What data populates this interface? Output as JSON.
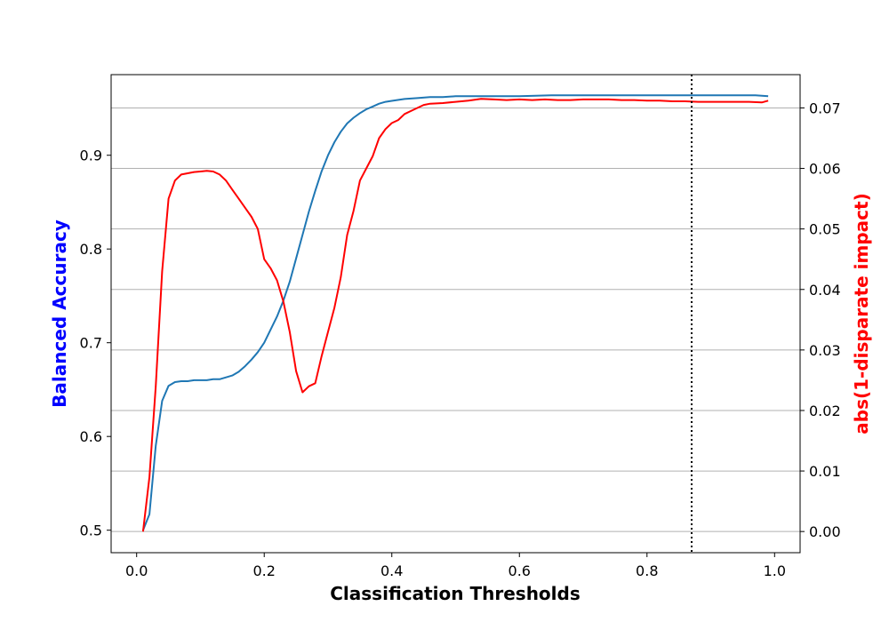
{
  "chart_data": {
    "type": "line",
    "title": "",
    "xlabel": "Classification Thresholds",
    "ylabel_left": "Balanced Accuracy",
    "ylabel_right": "abs(1-disparate impact)",
    "xlim": [
      -0.04,
      1.04
    ],
    "ylim_left": [
      0.476,
      0.986
    ],
    "ylim_right": [
      -0.0035,
      0.0755
    ],
    "x_ticks": [
      0.0,
      0.2,
      0.4,
      0.6,
      0.8,
      1.0
    ],
    "x_tick_labels": [
      "0.0",
      "0.2",
      "0.4",
      "0.6",
      "0.8",
      "1.0"
    ],
    "left_ticks": [
      0.5,
      0.6,
      0.7,
      0.8,
      0.9
    ],
    "left_tick_labels": [
      "0.5",
      "0.6",
      "0.7",
      "0.8",
      "0.9"
    ],
    "right_ticks": [
      0.0,
      0.01,
      0.02,
      0.03,
      0.04,
      0.05,
      0.06,
      0.07
    ],
    "right_tick_labels": [
      "0.00",
      "0.01",
      "0.02",
      "0.03",
      "0.04",
      "0.05",
      "0.06",
      "0.07"
    ],
    "grid": "horizontal (right axis ticks)",
    "vline_x": 0.87,
    "colors": {
      "accuracy": "#1f77b4",
      "disparity": "#ff0000",
      "left_label": "#0000ff",
      "right_label": "#ff0000",
      "grid": "#b0b0b0"
    },
    "series": [
      {
        "axis": "left",
        "x": [
          0.01,
          0.02,
          0.03,
          0.04,
          0.05,
          0.06,
          0.07,
          0.08,
          0.09,
          0.1,
          0.11,
          0.12,
          0.13,
          0.14,
          0.15,
          0.16,
          0.17,
          0.18,
          0.19,
          0.2,
          0.21,
          0.22,
          0.23,
          0.24,
          0.25,
          0.26,
          0.27,
          0.28,
          0.29,
          0.3,
          0.31,
          0.32,
          0.33,
          0.34,
          0.35,
          0.36,
          0.37,
          0.38,
          0.39,
          0.4,
          0.42,
          0.44,
          0.46,
          0.48,
          0.5,
          0.55,
          0.6,
          0.65,
          0.7,
          0.75,
          0.8,
          0.85,
          0.9,
          0.95,
          0.97,
          0.99
        ],
        "values": [
          0.5,
          0.517,
          0.59,
          0.638,
          0.654,
          0.658,
          0.659,
          0.659,
          0.66,
          0.66,
          0.66,
          0.661,
          0.661,
          0.663,
          0.665,
          0.669,
          0.675,
          0.682,
          0.69,
          0.7,
          0.714,
          0.728,
          0.745,
          0.765,
          0.79,
          0.815,
          0.84,
          0.862,
          0.883,
          0.9,
          0.914,
          0.925,
          0.934,
          0.94,
          0.945,
          0.949,
          0.952,
          0.955,
          0.957,
          0.958,
          0.96,
          0.961,
          0.962,
          0.962,
          0.963,
          0.963,
          0.963,
          0.964,
          0.964,
          0.964,
          0.964,
          0.964,
          0.964,
          0.964,
          0.964,
          0.963
        ]
      },
      {
        "axis": "right",
        "x": [
          0.01,
          0.02,
          0.03,
          0.04,
          0.05,
          0.06,
          0.07,
          0.08,
          0.09,
          0.1,
          0.11,
          0.12,
          0.13,
          0.14,
          0.15,
          0.16,
          0.17,
          0.18,
          0.19,
          0.2,
          0.21,
          0.22,
          0.23,
          0.24,
          0.25,
          0.26,
          0.27,
          0.28,
          0.29,
          0.3,
          0.31,
          0.32,
          0.33,
          0.34,
          0.35,
          0.36,
          0.37,
          0.38,
          0.39,
          0.4,
          0.41,
          0.42,
          0.43,
          0.44,
          0.45,
          0.46,
          0.48,
          0.5,
          0.52,
          0.54,
          0.56,
          0.58,
          0.6,
          0.62,
          0.64,
          0.66,
          0.68,
          0.7,
          0.72,
          0.74,
          0.76,
          0.78,
          0.8,
          0.82,
          0.84,
          0.86,
          0.88,
          0.9,
          0.92,
          0.94,
          0.96,
          0.98,
          0.99
        ],
        "values": [
          0.0,
          0.009,
          0.024,
          0.043,
          0.055,
          0.058,
          0.059,
          0.0592,
          0.0594,
          0.0595,
          0.0596,
          0.0595,
          0.059,
          0.058,
          0.0565,
          0.055,
          0.0535,
          0.052,
          0.05,
          0.045,
          0.0435,
          0.0415,
          0.038,
          0.033,
          0.0265,
          0.023,
          0.024,
          0.0245,
          0.029,
          0.033,
          0.037,
          0.042,
          0.049,
          0.053,
          0.058,
          0.06,
          0.062,
          0.065,
          0.0665,
          0.0675,
          0.068,
          0.069,
          0.0695,
          0.07,
          0.0705,
          0.0707,
          0.0708,
          0.071,
          0.0712,
          0.0715,
          0.0714,
          0.0713,
          0.0714,
          0.0713,
          0.0714,
          0.0713,
          0.0713,
          0.0714,
          0.0714,
          0.0714,
          0.0713,
          0.0713,
          0.0712,
          0.0712,
          0.0711,
          0.0711,
          0.071,
          0.071,
          0.071,
          0.071,
          0.071,
          0.0709,
          0.0712
        ]
      }
    ]
  }
}
